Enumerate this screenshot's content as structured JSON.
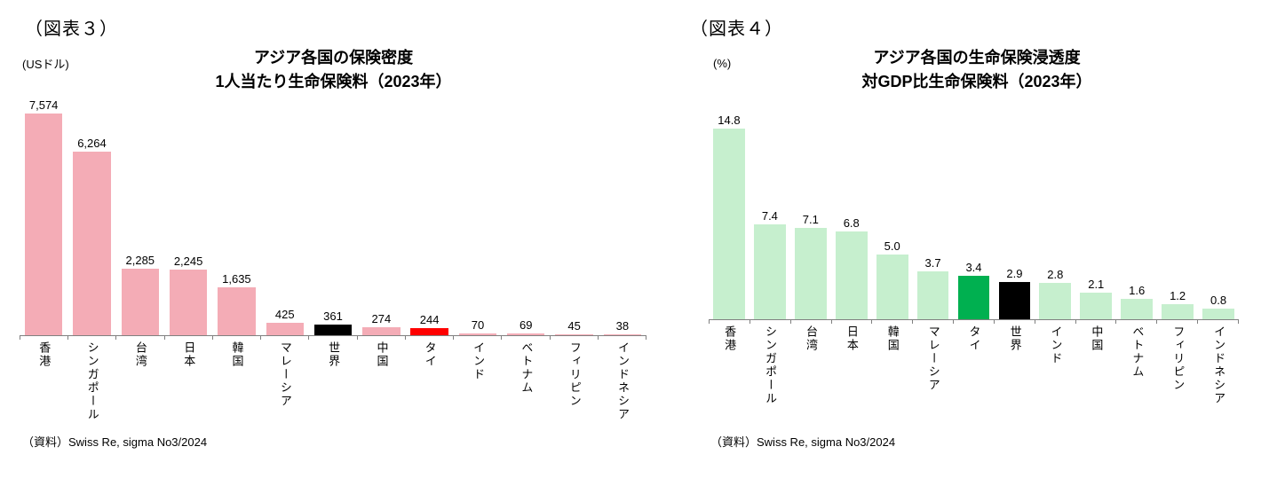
{
  "page": {
    "background": "#ffffff"
  },
  "chart_data": [
    {
      "type": "bar",
      "figure_label": "（図表３）",
      "title": "アジア各国の保険密度",
      "subtitle": "1人当たり生命保険料（2023年）",
      "unit": "(USドル)",
      "categories": [
        "香港",
        "シンガポール",
        "台湾",
        "日本",
        "韓国",
        "マレーシア",
        "世界",
        "中国",
        "タイ",
        "インド",
        "ベトナム",
        "フィリピン",
        "インドネシア"
      ],
      "values": [
        7574,
        6264,
        2285,
        2245,
        1635,
        425,
        361,
        274,
        244,
        70,
        69,
        45,
        38
      ],
      "value_labels": [
        "7,574",
        "6,264",
        "2,285",
        "2,245",
        "1,635",
        "425",
        "361",
        "274",
        "244",
        "70",
        "69",
        "45",
        "38"
      ],
      "colors": [
        "#F4ACB6",
        "#F4ACB6",
        "#F4ACB6",
        "#F4ACB6",
        "#F4ACB6",
        "#F4ACB6",
        "#000000",
        "#F4ACB6",
        "#FF0000",
        "#F4ACB6",
        "#F4ACB6",
        "#F4ACB6",
        "#F4ACB6"
      ],
      "highlight_colors": {
        "世界": "#000000",
        "タイ": "#FF0000",
        "default": "#F4ACB6"
      },
      "xlabel": "",
      "ylabel": "USドル",
      "ylim": [
        0,
        7574
      ],
      "grid": false,
      "legend": "none",
      "source": "（資料）Swiss Re, sigma No3/2024"
    },
    {
      "type": "bar",
      "figure_label": "（図表４）",
      "title": "アジア各国の生命保険浸透度",
      "subtitle": "対GDP比生命保険料（2023年）",
      "unit": "(%)",
      "categories": [
        "香港",
        "シンガポール",
        "台湾",
        "日本",
        "韓国",
        "マレーシア",
        "タイ",
        "世界",
        "インド",
        "中国",
        "ベトナム",
        "フィリピン",
        "インドネシア"
      ],
      "values": [
        14.8,
        7.4,
        7.1,
        6.8,
        5.0,
        3.7,
        3.4,
        2.9,
        2.8,
        2.1,
        1.6,
        1.2,
        0.8
      ],
      "value_labels": [
        "14.8",
        "7.4",
        "7.1",
        "6.8",
        "5.0",
        "3.7",
        "3.4",
        "2.9",
        "2.8",
        "2.1",
        "1.6",
        "1.2",
        "0.8"
      ],
      "colors": [
        "#C6EFCE",
        "#C6EFCE",
        "#C6EFCE",
        "#C6EFCE",
        "#C6EFCE",
        "#C6EFCE",
        "#00B050",
        "#000000",
        "#C6EFCE",
        "#C6EFCE",
        "#C6EFCE",
        "#C6EFCE",
        "#C6EFCE"
      ],
      "highlight_colors": {
        "タイ": "#00B050",
        "世界": "#000000",
        "default": "#C6EFCE"
      },
      "xlabel": "",
      "ylabel": "%",
      "ylim": [
        0,
        14.8
      ],
      "grid": false,
      "legend": "none",
      "source": "（資料）Swiss Re, sigma No3/2024"
    }
  ]
}
